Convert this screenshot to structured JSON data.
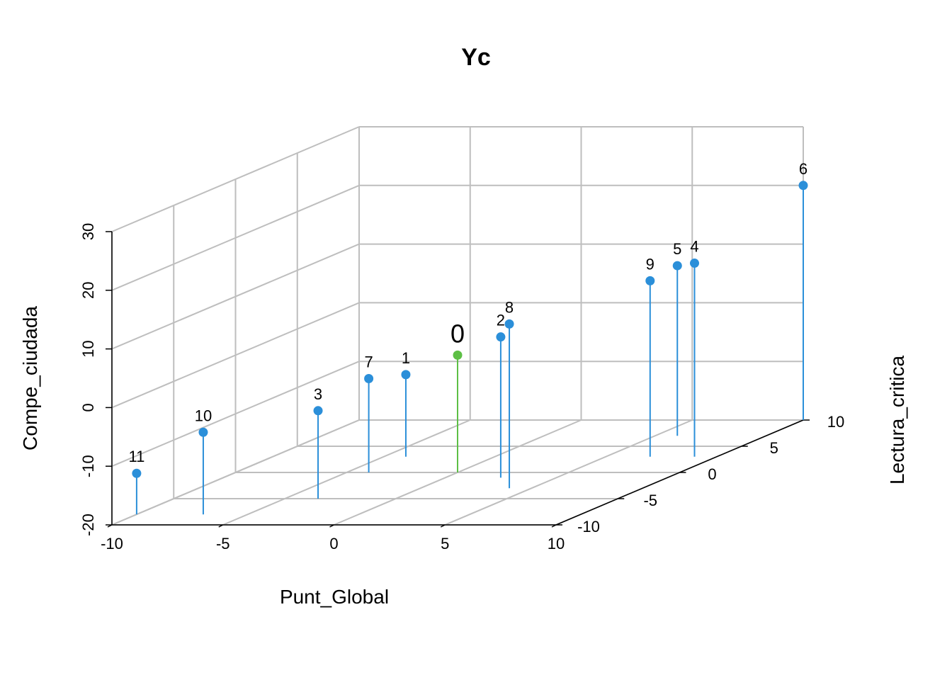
{
  "chart_data": {
    "type": "scatter",
    "subtype": "scatter3d-with-drop-lines",
    "title": "Yc",
    "axes": {
      "x": {
        "label": "Punt_Global",
        "range": [
          -10,
          10
        ],
        "ticks": [
          "-10",
          "-5",
          "0",
          "5",
          "10"
        ]
      },
      "y": {
        "label": "Lectura_critica",
        "range": [
          -10,
          10
        ],
        "ticks": [
          "-10",
          "-5",
          "0",
          "5",
          "10"
        ]
      },
      "z": {
        "label": "Compe_ciudada",
        "range": [
          -20,
          30
        ],
        "ticks": [
          "-20",
          "-10",
          "0",
          "10",
          "20",
          "30"
        ]
      }
    },
    "grid": true,
    "colors": {
      "points": "#2b8fd9",
      "highlight": "#5dbf45",
      "grid": "#bebebe"
    },
    "points": [
      {
        "label": "0",
        "x": 0,
        "y": 0,
        "z": 0,
        "highlight": true
      },
      {
        "label": "1",
        "x": -4,
        "y": 3,
        "z": -6
      },
      {
        "label": "2",
        "x": 2.5,
        "y": -1,
        "z": 4
      },
      {
        "label": "3",
        "x": -3.5,
        "y": -5,
        "z": -5
      },
      {
        "label": "4",
        "x": 9,
        "y": 3,
        "z": 13
      },
      {
        "label": "5",
        "x": 6,
        "y": 7,
        "z": 9
      },
      {
        "label": "6",
        "x": 10,
        "y": 10,
        "z": 20
      },
      {
        "label": "7",
        "x": -4,
        "y": 0,
        "z": -4
      },
      {
        "label": "8",
        "x": 4,
        "y": -3,
        "z": 8
      },
      {
        "label": "9",
        "x": 7,
        "y": 3,
        "z": 10
      },
      {
        "label": "10",
        "x": -7,
        "y": -8,
        "z": -6
      },
      {
        "label": "11",
        "x": -10,
        "y": -8,
        "z": -13
      }
    ]
  }
}
